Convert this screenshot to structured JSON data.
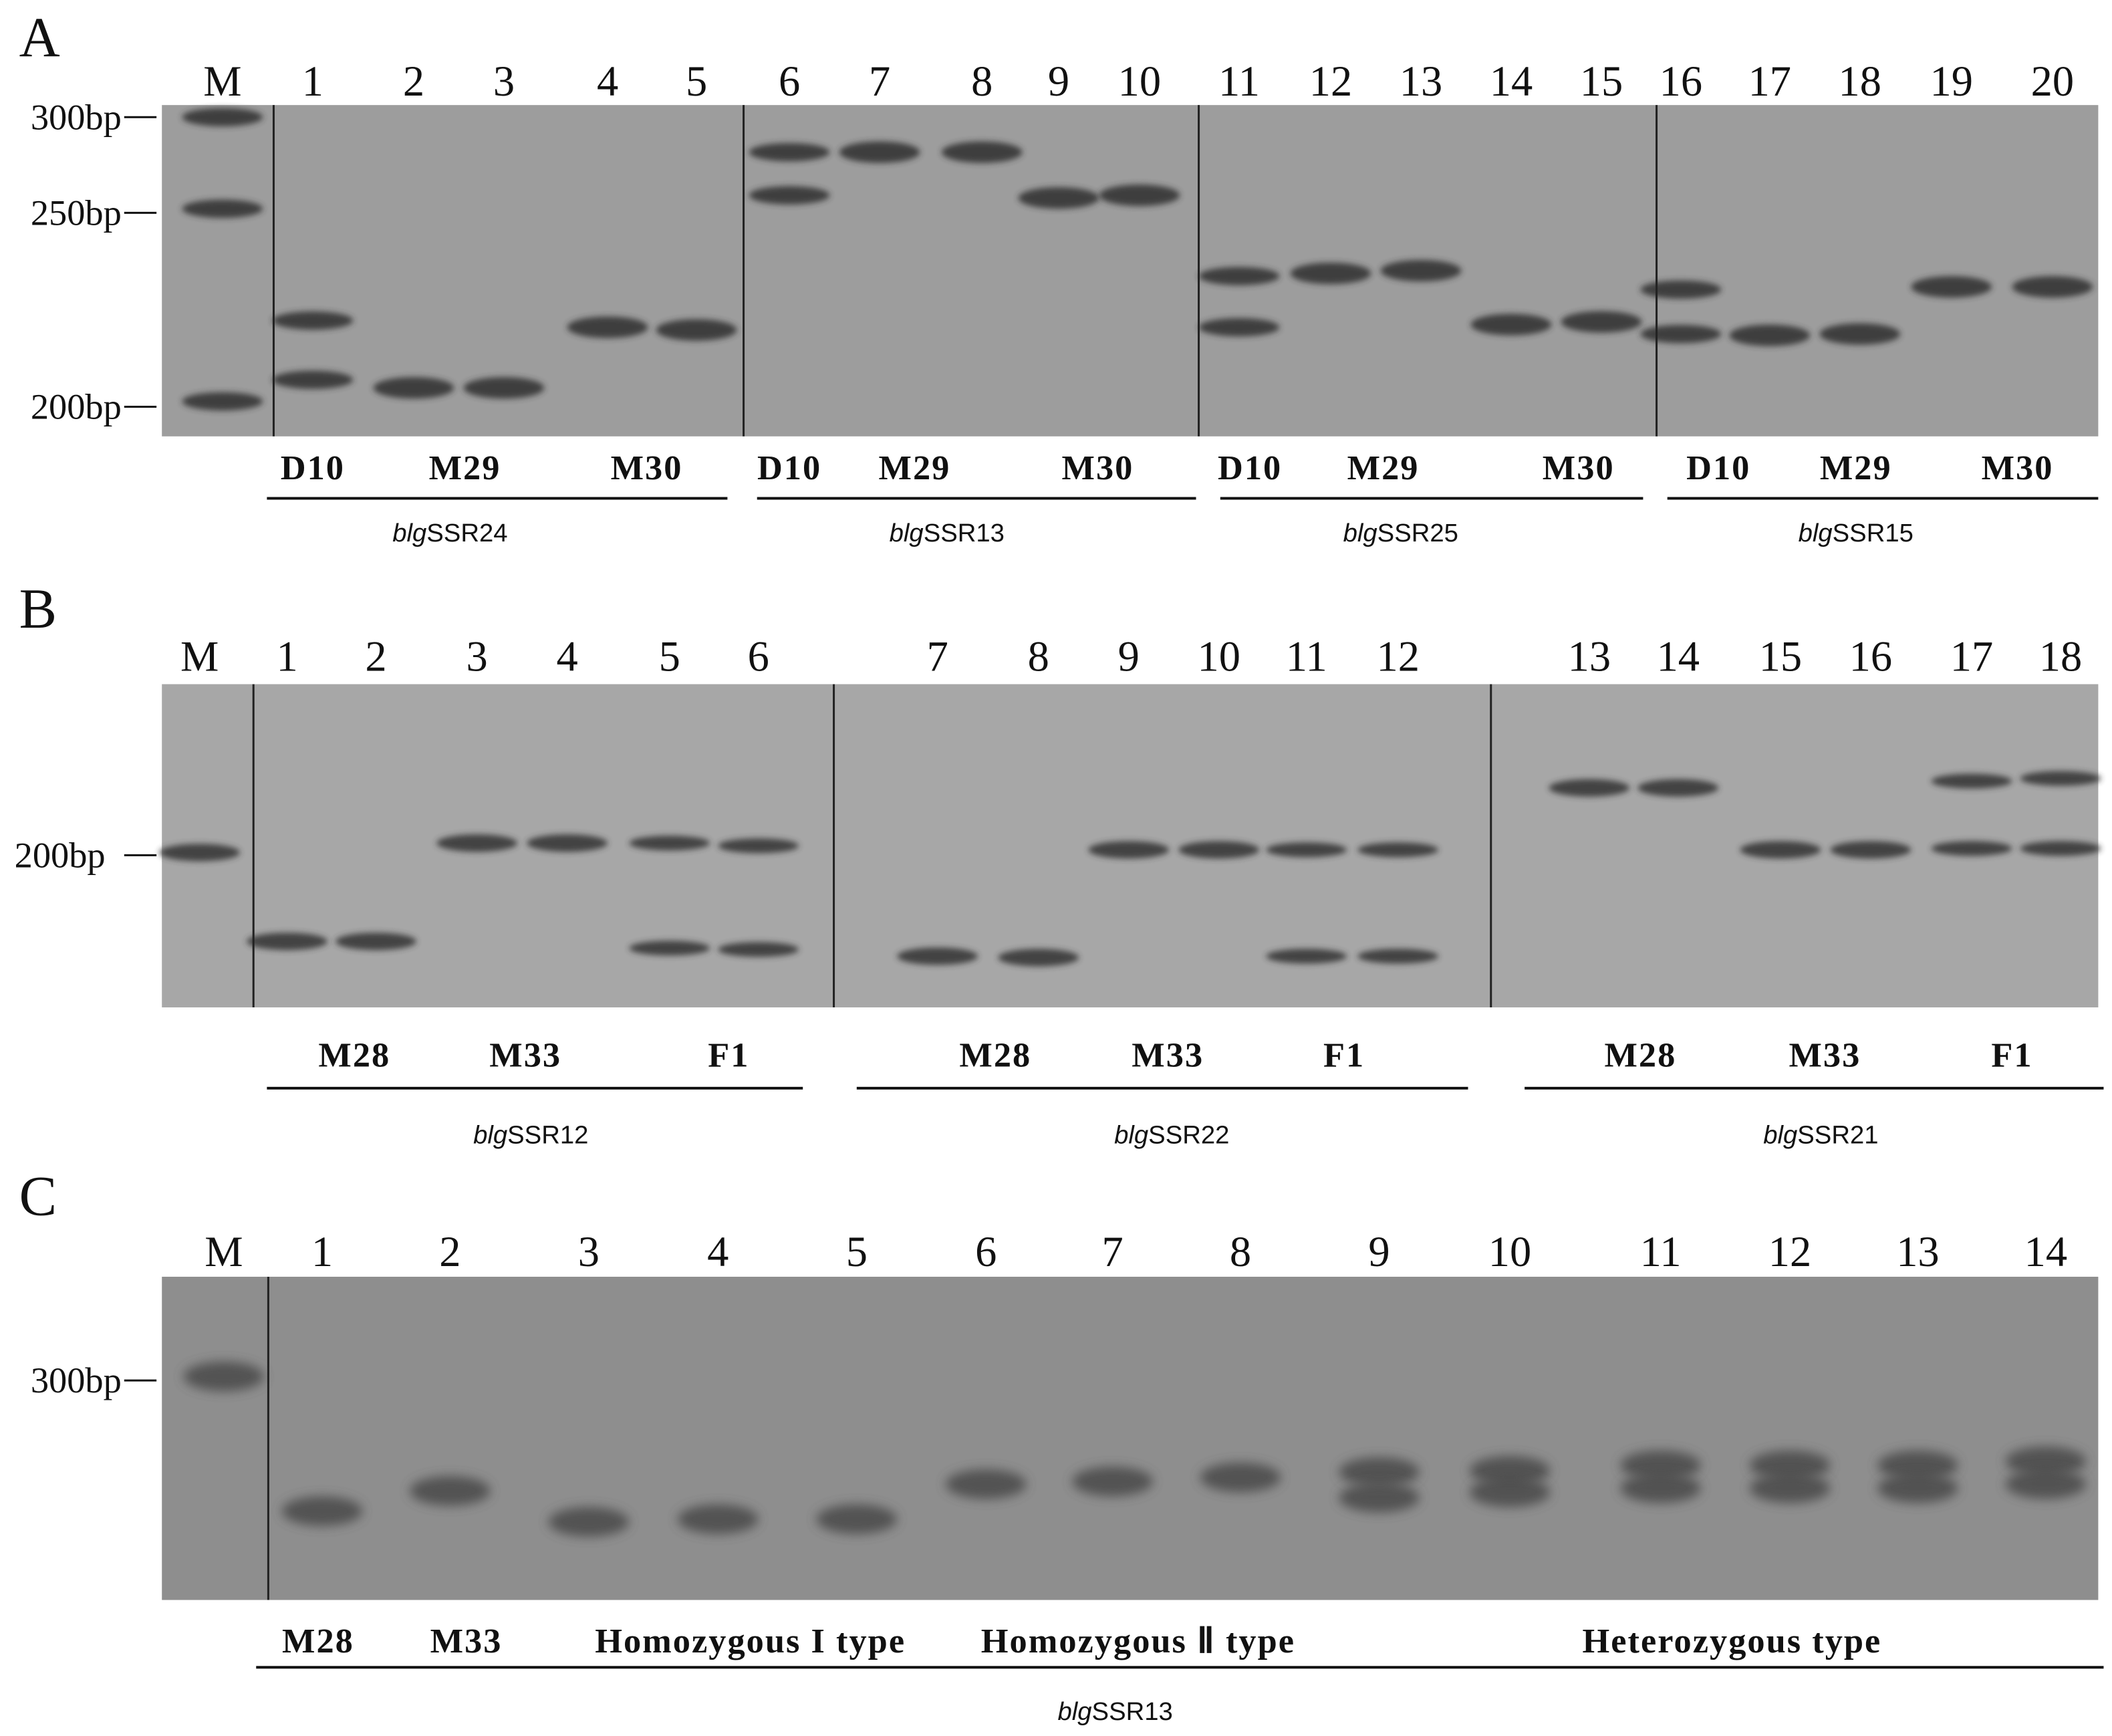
{
  "panels": [
    {
      "label": "A",
      "ladder": [
        "300bp",
        "250bp",
        "200bp"
      ],
      "lanes": [
        "M",
        "1",
        "2",
        "3",
        "4",
        "5",
        "6",
        "7",
        "8",
        "9",
        "10",
        "11",
        "12",
        "13",
        "14",
        "15",
        "16",
        "17",
        "18",
        "19",
        "20"
      ],
      "groups": [
        {
          "samples": [
            "D10",
            "M29",
            "M30"
          ],
          "marker": "blgSSR24"
        },
        {
          "samples": [
            "D10",
            "M29",
            "M30"
          ],
          "marker": "blgSSR13"
        },
        {
          "samples": [
            "D10",
            "M29",
            "M30"
          ],
          "marker": "blgSSR25"
        },
        {
          "samples": [
            "D10",
            "M29",
            "M30"
          ],
          "marker": "blgSSR15"
        }
      ]
    },
    {
      "label": "B",
      "ladder": [
        "200bp"
      ],
      "lanes": [
        "M",
        "1",
        "2",
        "3",
        "4",
        "5",
        "6",
        "7",
        "8",
        "9",
        "10",
        "11",
        "12",
        "13",
        "14",
        "15",
        "16",
        "17",
        "18"
      ],
      "groups": [
        {
          "samples": [
            "M28",
            "M33",
            "F1"
          ],
          "marker": "blgSSR12"
        },
        {
          "samples": [
            "M28",
            "M33",
            "F1"
          ],
          "marker": "blgSSR22"
        },
        {
          "samples": [
            "M28",
            "M33",
            "F1"
          ],
          "marker": "blgSSR21"
        }
      ]
    },
    {
      "label": "C",
      "ladder": [
        "300bp"
      ],
      "lanes": [
        "M",
        "1",
        "2",
        "3",
        "4",
        "5",
        "6",
        "7",
        "8",
        "9",
        "10",
        "11",
        "12",
        "13",
        "14"
      ],
      "groups": [
        {
          "samples": [
            "M28",
            "M33",
            "Homozygous I type",
            "Homozygous Ⅱ type",
            "Heterozygous type"
          ],
          "marker": "blgSSR13"
        }
      ]
    }
  ]
}
